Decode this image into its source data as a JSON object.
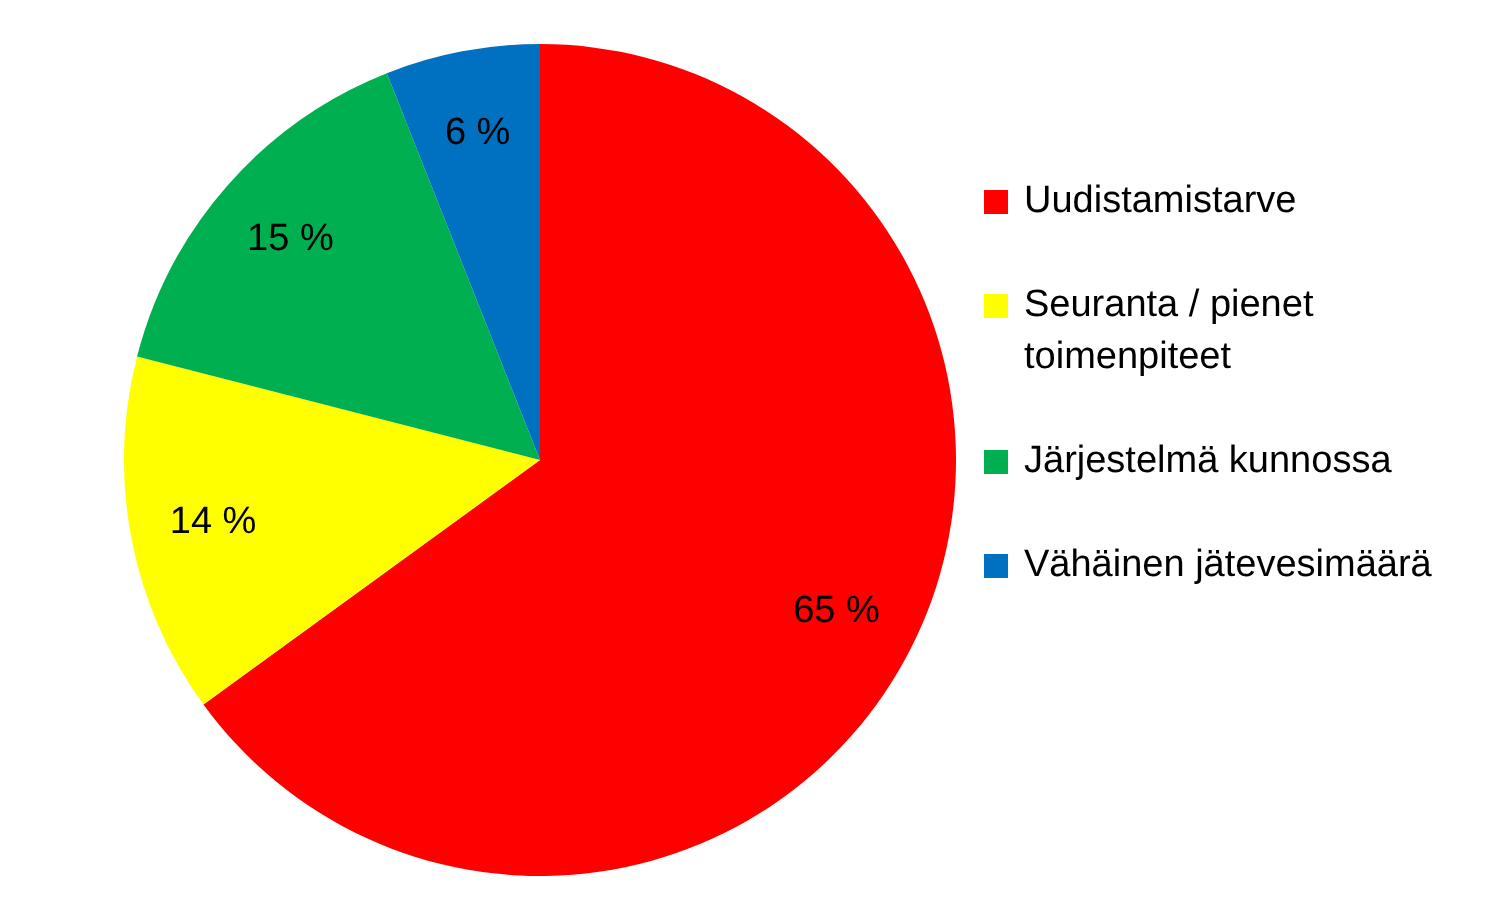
{
  "chart_data": {
    "type": "pie",
    "categories": [
      "Uudistamistarve",
      "Seuranta / pienet toimenpiteet",
      "Järjestelmä kunnossa",
      "Vähäinen jätevesimäärä"
    ],
    "values": [
      65,
      14,
      15,
      6
    ],
    "value_labels": [
      "65 %",
      "14 %",
      "15 %",
      "6 %"
    ],
    "colors": [
      "#ff0000",
      "#ffff00",
      "#00b050",
      "#0070c0"
    ],
    "legend": "right"
  }
}
